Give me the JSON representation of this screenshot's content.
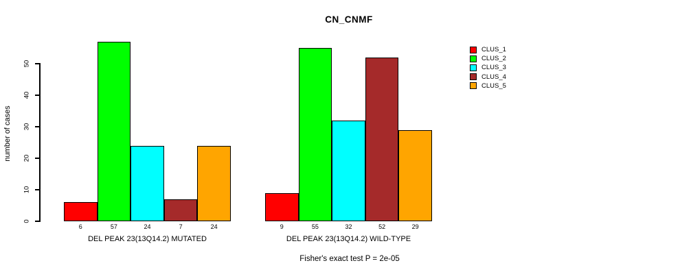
{
  "title": "CN_CNMF",
  "y_axis": {
    "label": "number of cases",
    "ticks": [
      0,
      10,
      20,
      30,
      40,
      50
    ]
  },
  "chart_data": {
    "type": "bar",
    "title": "CN_CNMF",
    "ylabel": "number of cases",
    "ylim": [
      0,
      58
    ],
    "grid": false,
    "legend_position": "right",
    "categories": [
      "DEL PEAK 23(13Q14.2) MUTATED",
      "DEL PEAK 23(13Q14.2) WILD-TYPE"
    ],
    "series": [
      {
        "name": "CLUS_1",
        "color": "#FF0000",
        "values": [
          6,
          9
        ]
      },
      {
        "name": "CLUS_2",
        "color": "#00FF00",
        "values": [
          57,
          55
        ]
      },
      {
        "name": "CLUS_3",
        "color": "#00FFFF",
        "values": [
          24,
          32
        ]
      },
      {
        "name": "CLUS_4",
        "color": "#A52A2A",
        "values": [
          7,
          52
        ]
      },
      {
        "name": "CLUS_5",
        "color": "#FFA500",
        "values": [
          24,
          29
        ]
      }
    ],
    "bar_value_labels": [
      [
        6,
        57,
        24,
        7,
        24
      ],
      [
        9,
        55,
        32,
        52,
        29
      ]
    ]
  },
  "legend": {
    "items": [
      {
        "label": "CLUS_1",
        "color": "#FF0000"
      },
      {
        "label": "CLUS_2",
        "color": "#00FF00"
      },
      {
        "label": "CLUS_3",
        "color": "#00FFFF"
      },
      {
        "label": "CLUS_4",
        "color": "#A52A2A"
      },
      {
        "label": "CLUS_5",
        "color": "#FFA500"
      }
    ]
  },
  "caption": "Fisher's exact test P = 2e-05"
}
